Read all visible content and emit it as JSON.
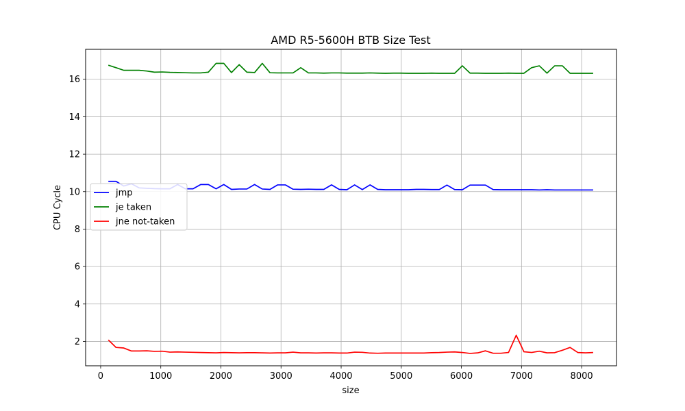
{
  "chart_data": {
    "type": "line",
    "title": "AMD R5-5600H BTB Size Test",
    "xlabel": "size",
    "ylabel": "CPU Cycle",
    "xlim": [
      -250,
      8580
    ],
    "ylim": [
      0.7,
      17.6
    ],
    "xticks": [
      0,
      1000,
      2000,
      3000,
      4000,
      5000,
      6000,
      7000,
      8000
    ],
    "yticks": [
      2,
      4,
      6,
      8,
      10,
      12,
      14,
      16
    ],
    "grid": true,
    "legend_position": "center-left",
    "x": [
      128,
      256,
      384,
      512,
      640,
      768,
      896,
      1024,
      1152,
      1280,
      1408,
      1536,
      1664,
      1792,
      1920,
      2048,
      2176,
      2304,
      2432,
      2560,
      2688,
      2816,
      2944,
      3072,
      3200,
      3328,
      3456,
      3584,
      3712,
      3840,
      3968,
      4096,
      4224,
      4352,
      4480,
      4608,
      4736,
      4864,
      4992,
      5120,
      5248,
      5376,
      5504,
      5632,
      5760,
      5888,
      6016,
      6144,
      6272,
      6400,
      6528,
      6656,
      6784,
      6912,
      7040,
      7168,
      7296,
      7424,
      7552,
      7680,
      7808,
      7936,
      8064,
      8192
    ],
    "series": [
      {
        "name": "jmp",
        "color": "#0000ff",
        "values": [
          10.55,
          10.55,
          10.3,
          10.42,
          10.2,
          10.18,
          10.16,
          10.15,
          10.15,
          10.38,
          10.15,
          10.15,
          10.38,
          10.38,
          10.15,
          10.38,
          10.12,
          10.14,
          10.14,
          10.38,
          10.14,
          10.12,
          10.36,
          10.36,
          10.13,
          10.12,
          10.13,
          10.12,
          10.12,
          10.36,
          10.12,
          10.1,
          10.36,
          10.11,
          10.36,
          10.12,
          10.1,
          10.1,
          10.1,
          10.1,
          10.12,
          10.12,
          10.11,
          10.11,
          10.35,
          10.11,
          10.1,
          10.35,
          10.35,
          10.35,
          10.11,
          10.1,
          10.1,
          10.1,
          10.1,
          10.1,
          10.09,
          10.1,
          10.09,
          10.09,
          10.09,
          10.09,
          10.09,
          10.09
        ]
      },
      {
        "name": "je taken",
        "color": "#008000",
        "values": [
          16.75,
          16.62,
          16.48,
          16.48,
          16.48,
          16.44,
          16.38,
          16.39,
          16.37,
          16.36,
          16.35,
          16.34,
          16.34,
          16.38,
          16.85,
          16.85,
          16.36,
          16.78,
          16.38,
          16.36,
          16.85,
          16.35,
          16.34,
          16.34,
          16.34,
          16.62,
          16.34,
          16.34,
          16.33,
          16.34,
          16.34,
          16.33,
          16.33,
          16.33,
          16.34,
          16.33,
          16.32,
          16.33,
          16.33,
          16.32,
          16.32,
          16.32,
          16.33,
          16.32,
          16.32,
          16.32,
          16.72,
          16.33,
          16.33,
          16.32,
          16.32,
          16.32,
          16.33,
          16.32,
          16.32,
          16.62,
          16.72,
          16.33,
          16.72,
          16.72,
          16.32,
          16.32,
          16.32,
          16.32
        ]
      },
      {
        "name": "jne not-taken",
        "color": "#ff0000",
        "values": [
          2.08,
          1.68,
          1.65,
          1.49,
          1.49,
          1.5,
          1.47,
          1.48,
          1.43,
          1.44,
          1.43,
          1.42,
          1.41,
          1.4,
          1.39,
          1.41,
          1.4,
          1.39,
          1.4,
          1.4,
          1.39,
          1.38,
          1.39,
          1.39,
          1.43,
          1.39,
          1.39,
          1.38,
          1.39,
          1.39,
          1.38,
          1.38,
          1.43,
          1.42,
          1.38,
          1.37,
          1.38,
          1.38,
          1.38,
          1.38,
          1.38,
          1.38,
          1.4,
          1.41,
          1.43,
          1.44,
          1.41,
          1.36,
          1.39,
          1.5,
          1.37,
          1.37,
          1.41,
          2.33,
          1.45,
          1.41,
          1.48,
          1.39,
          1.4,
          1.53,
          1.68,
          1.41,
          1.39,
          1.41
        ]
      }
    ]
  }
}
